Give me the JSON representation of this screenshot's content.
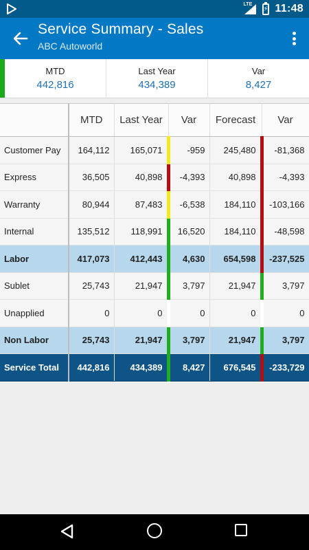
{
  "status_bar": {
    "time": "11:48",
    "network_label": "LTE",
    "icons": [
      "play-store-icon",
      "lte-signal-icon",
      "battery-charging-icon"
    ]
  },
  "app_bar": {
    "title": "Service Summary - Sales",
    "subtitle": "ABC Autoworld"
  },
  "summary": [
    {
      "label": "MTD",
      "value": "442,816"
    },
    {
      "label": "Last Year",
      "value": "434,389"
    },
    {
      "label": "Var",
      "value": "8,427"
    }
  ],
  "table": {
    "headers": [
      "",
      "MTD",
      "Last Year",
      "Var",
      "Forecast",
      "Var"
    ],
    "rows": [
      {
        "type": "plain",
        "name": "Customer Pay",
        "mtd": "164,112",
        "last_year": "165,071",
        "var": "-959",
        "var_status": "yellow",
        "forecast": "245,480",
        "fvar": "-81,368",
        "fvar_status": "red"
      },
      {
        "type": "plain",
        "name": "Express",
        "mtd": "36,505",
        "last_year": "40,898",
        "var": "-4,393",
        "var_status": "red",
        "forecast": "40,898",
        "fvar": "-4,393",
        "fvar_status": "red"
      },
      {
        "type": "plain",
        "name": "Warranty",
        "mtd": "80,944",
        "last_year": "87,483",
        "var": "-6,538",
        "var_status": "yellow",
        "forecast": "184,110",
        "fvar": "-103,166",
        "fvar_status": "red"
      },
      {
        "type": "plain",
        "name": "Internal",
        "mtd": "135,512",
        "last_year": "118,991",
        "var": "16,520",
        "var_status": "green",
        "forecast": "184,110",
        "fvar": "-48,598",
        "fvar_status": "red"
      },
      {
        "type": "sub",
        "name": "Labor",
        "mtd": "417,073",
        "last_year": "412,443",
        "var": "4,630",
        "var_status": "green",
        "forecast": "654,598",
        "fvar": "-237,525",
        "fvar_status": "red"
      },
      {
        "type": "plain",
        "name": "Sublet",
        "mtd": "25,743",
        "last_year": "21,947",
        "var": "3,797",
        "var_status": "green",
        "forecast": "21,947",
        "fvar": "3,797",
        "fvar_status": "green"
      },
      {
        "type": "plain",
        "name": "Unapplied",
        "mtd": "0",
        "last_year": "0",
        "var": "0",
        "var_status": "none",
        "forecast": "0",
        "fvar": "0",
        "fvar_status": "none"
      },
      {
        "type": "sub",
        "name": "Non Labor",
        "mtd": "25,743",
        "last_year": "21,947",
        "var": "3,797",
        "var_status": "green",
        "forecast": "21,947",
        "fvar": "3,797",
        "fvar_status": "green"
      },
      {
        "type": "total",
        "name": "Service Total",
        "mtd": "442,816",
        "last_year": "434,389",
        "var": "8,427",
        "var_status": "green",
        "forecast": "676,545",
        "fvar": "-233,729",
        "fvar_status": "red"
      }
    ]
  },
  "colors": {
    "status_bar": "#015a8a",
    "app_bar": "#0378c4",
    "positive": "#1eae1e",
    "warning": "#f2ea1c",
    "negative": "#b30f10",
    "subtotal_row": "#b6d7ec",
    "total_row": "#0e5487"
  },
  "nav_bar": {
    "icons": [
      "back-triangle-icon",
      "home-circle-icon",
      "recents-square-icon"
    ]
  }
}
